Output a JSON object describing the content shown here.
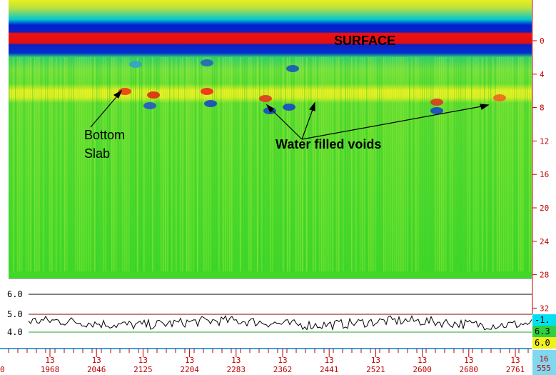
{
  "depth_axis": {
    "labels": [
      "0",
      "4",
      "8",
      "12",
      "16",
      "20",
      "24",
      "28",
      "32"
    ]
  },
  "annotations": {
    "surface": "SURFACE",
    "bottom_slab": [
      "Bottom",
      "Slab"
    ],
    "voids": "Water filled voids"
  },
  "trace_panel": {
    "levels": [
      "6.0",
      "5.0",
      "4.0"
    ]
  },
  "distance_axis": {
    "start": "0",
    "markers": [
      {
        "top": "13",
        "bottom": "1968"
      },
      {
        "top": "13",
        "bottom": "2046"
      },
      {
        "top": "13",
        "bottom": "2125"
      },
      {
        "top": "13",
        "bottom": "2204"
      },
      {
        "top": "13",
        "bottom": "2283"
      },
      {
        "top": "13",
        "bottom": "2362"
      },
      {
        "top": "13",
        "bottom": "2441"
      },
      {
        "top": "13",
        "bottom": "2521"
      },
      {
        "top": "13",
        "bottom": "2600"
      },
      {
        "top": "13",
        "bottom": "2680"
      },
      {
        "top": "13",
        "bottom": "2761"
      }
    ]
  },
  "readout": [
    "-1.",
    "6.3",
    "6.0"
  ],
  "corner": [
    "16",
    "555"
  ]
}
